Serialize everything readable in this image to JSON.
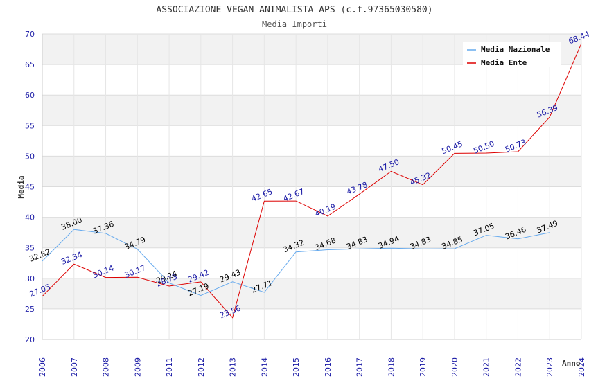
{
  "chart_data": {
    "type": "line",
    "title": "ASSOCIAZIONE VEGAN ANIMALISTA APS (c.f.97365030580)",
    "subtitle": "Media Importi",
    "xlabel": "Anno",
    "ylabel": "Media",
    "ylim": [
      20,
      70
    ],
    "yticks": [
      20,
      25,
      30,
      35,
      40,
      45,
      50,
      55,
      60,
      65,
      70
    ],
    "categories": [
      "2006",
      "2007",
      "2008",
      "2009",
      "2011",
      "2012",
      "2013",
      "2014",
      "2015",
      "2016",
      "2017",
      "2018",
      "2019",
      "2020",
      "2021",
      "2022",
      "2023",
      "2024"
    ],
    "legend_position": "top-right",
    "series": [
      {
        "name": "Media Nazionale",
        "color": "#66aaee",
        "label_color": "#000000",
        "values": [
          32.82,
          38.0,
          37.36,
          34.79,
          29.24,
          27.19,
          29.43,
          27.71,
          34.32,
          34.68,
          34.83,
          34.94,
          34.83,
          34.85,
          37.05,
          36.46,
          37.49,
          null
        ],
        "labels": [
          "32.82",
          "38.00",
          "37.36",
          "34.79",
          "29.24",
          "27.19",
          "29.43",
          "27.71",
          "34.32",
          "34.68",
          "34.83",
          "34.94",
          "34.83",
          "34.85",
          "37.05",
          "36.46",
          "37.49",
          ""
        ]
      },
      {
        "name": "Media Ente",
        "color": "#dd0000",
        "label_color": "#1a1aa6",
        "values": [
          27.05,
          32.34,
          30.14,
          30.17,
          28.73,
          29.42,
          23.56,
          42.65,
          42.67,
          40.19,
          43.78,
          47.5,
          45.32,
          50.45,
          50.5,
          50.73,
          56.39,
          68.44
        ],
        "labels": [
          "27.05",
          "32.34",
          "30.14",
          "30.17",
          "28.73",
          "29.42",
          "23.56",
          "42.65",
          "42.67",
          "40.19",
          "43.78",
          "47.50",
          "45.32",
          "50.45",
          "50.50",
          "50.73",
          "56.39",
          "68.44"
        ]
      }
    ]
  }
}
